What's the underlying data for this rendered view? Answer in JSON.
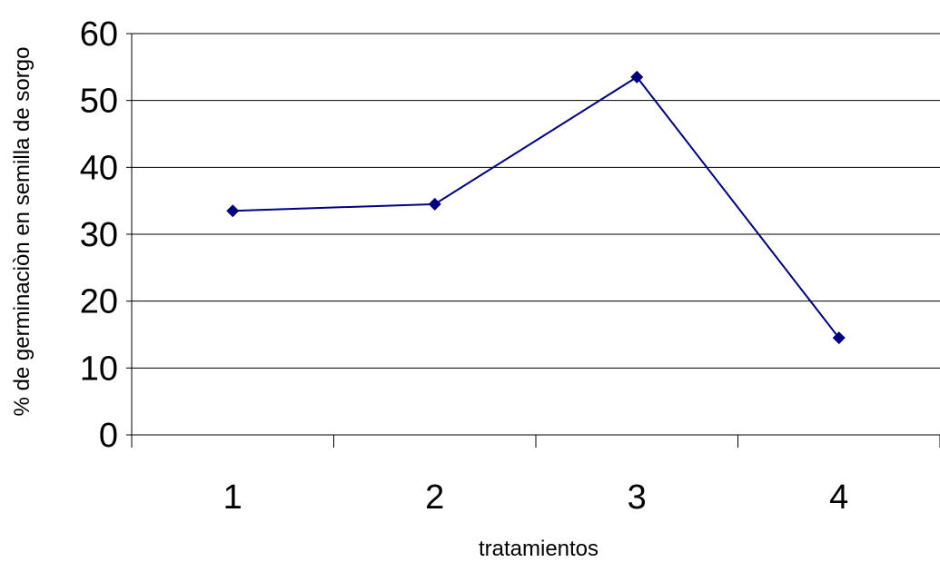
{
  "chart_data": {
    "type": "line",
    "categories": [
      "1",
      "2",
      "3",
      "4"
    ],
    "series": [
      {
        "values": [
          33.5,
          34.5,
          53.5,
          14.5
        ]
      }
    ],
    "xlabel": "tratamientos",
    "ylabel": "% de germinaciòn en semilla de sorgo",
    "ylim": [
      0,
      60
    ],
    "yticks": [
      "0",
      "10",
      "20",
      "30",
      "40",
      "50",
      "60"
    ],
    "grid": true,
    "legend": "none",
    "colors": {
      "line": "#000080",
      "marker": "#000080"
    }
  }
}
